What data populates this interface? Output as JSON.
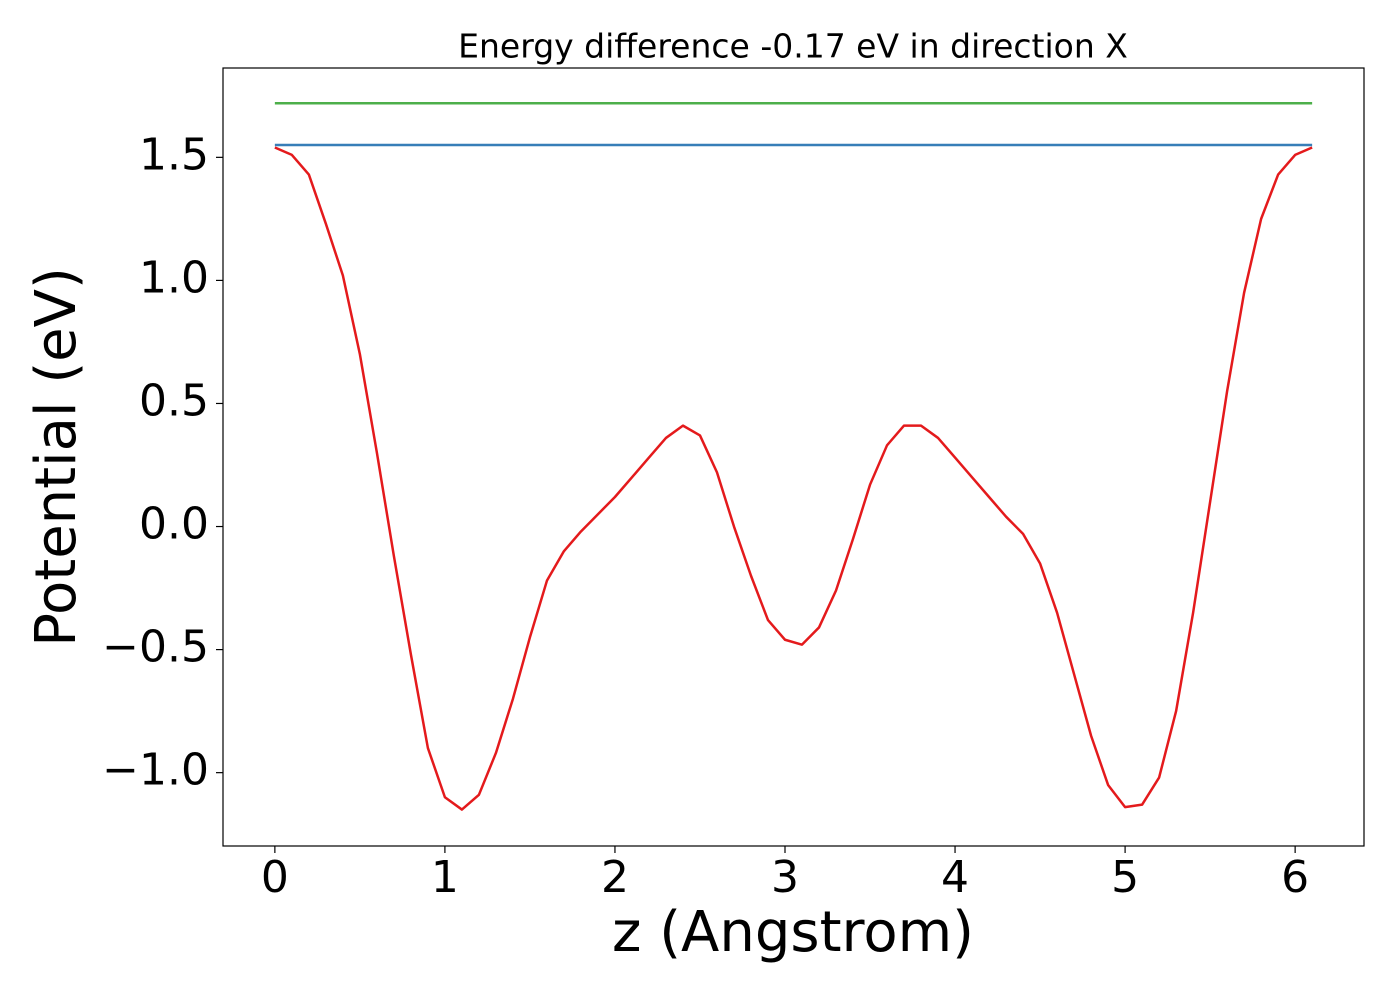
{
  "chart_data": {
    "type": "line",
    "title": "Energy difference -0.17 eV in direction X",
    "xlabel": "z (Angstrom)",
    "ylabel": "Potential (eV)",
    "xlim": [
      -0.305,
      6.405
    ],
    "ylim": [
      -1.298,
      1.863
    ],
    "xticks": [
      0,
      1,
      2,
      3,
      4,
      5,
      6
    ],
    "yticks": [
      {
        "value": -1.0,
        "label": "−1.0"
      },
      {
        "value": -0.5,
        "label": "−0.5"
      },
      {
        "value": 0,
        "label": "0.0"
      },
      0.5,
      {
        "value": 1.0,
        "label": "1.0"
      },
      1.5
    ],
    "grid": false,
    "series": [
      {
        "color": "#e41a1c",
        "x": [
          0,
          0.1,
          0.2,
          0.3,
          0.4,
          0.5,
          0.6,
          0.7,
          0.8,
          0.9,
          1.0,
          1.1,
          1.2,
          1.3,
          1.4,
          1.5,
          1.6,
          1.7,
          1.8,
          1.9,
          2.0,
          2.1,
          2.2,
          2.3,
          2.4,
          2.5,
          2.6,
          2.7,
          2.8,
          2.9,
          3.0,
          3.1,
          3.2,
          3.3,
          3.4,
          3.5,
          3.6,
          3.7,
          3.8,
          3.9,
          4.0,
          4.1,
          4.2,
          4.3,
          4.4,
          4.5,
          4.6,
          4.7,
          4.8,
          4.9,
          5.0,
          5.1,
          5.2,
          5.3,
          5.4,
          5.5,
          5.6,
          5.7,
          5.8,
          5.9,
          6.0,
          6.1
        ],
        "values": [
          1.54,
          1.51,
          1.43,
          1.23,
          1.02,
          0.7,
          0.3,
          -0.12,
          -0.52,
          -0.9,
          -1.1,
          -1.15,
          -1.09,
          -0.92,
          -0.7,
          -0.45,
          -0.22,
          -0.1,
          -0.02,
          0.05,
          0.12,
          0.2,
          0.28,
          0.36,
          0.41,
          0.37,
          0.22,
          0.0,
          -0.2,
          -0.38,
          -0.46,
          -0.48,
          -0.41,
          -0.26,
          -0.05,
          0.17,
          0.33,
          0.41,
          0.41,
          0.36,
          0.28,
          0.2,
          0.12,
          0.04,
          -0.03,
          -0.15,
          -0.35,
          -0.6,
          -0.85,
          -1.05,
          -1.14,
          -1.13,
          -1.02,
          -0.75,
          -0.35,
          0.1,
          0.55,
          0.95,
          1.25,
          1.43,
          1.51,
          1.54
        ]
      },
      {
        "color": "#377eb8",
        "x": [
          0,
          6.1
        ],
        "values": [
          1.55,
          1.55
        ]
      },
      {
        "color": "#4daf4a",
        "x": [
          0,
          6.1
        ],
        "values": [
          1.72,
          1.72
        ]
      }
    ]
  }
}
